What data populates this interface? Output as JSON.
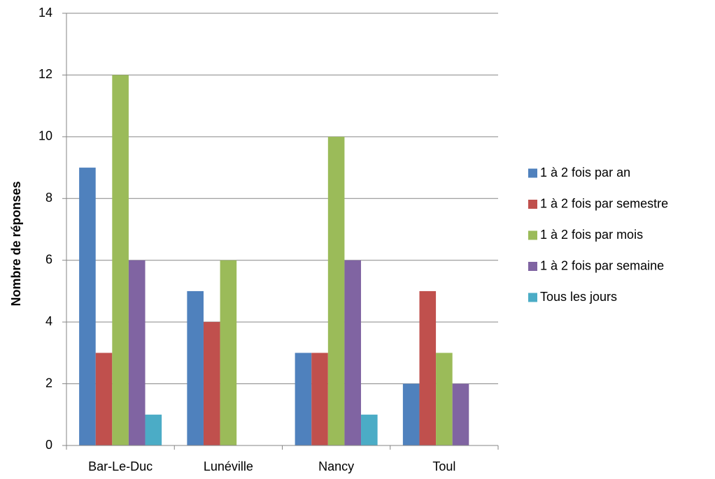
{
  "chart_data": {
    "type": "bar",
    "title": "",
    "xlabel": "",
    "ylabel": "Nombre de réponses",
    "ylim": [
      0,
      14
    ],
    "yticks": [
      0,
      2,
      4,
      6,
      8,
      10,
      12,
      14
    ],
    "grid": true,
    "legend_position": "right",
    "categories": [
      "Bar-Le-Duc",
      "Lunéville",
      "Nancy",
      "Toul"
    ],
    "series": [
      {
        "name": "1 à 2 fois par an",
        "color": "#4F81BD",
        "values": [
          9,
          5,
          3,
          2
        ]
      },
      {
        "name": "1 à 2 fois par semestre",
        "color": "#C0504D",
        "values": [
          3,
          4,
          3,
          5
        ]
      },
      {
        "name": "1 à 2 fois par mois",
        "color": "#9BBB59",
        "values": [
          12,
          6,
          10,
          3
        ]
      },
      {
        "name": "1 à 2 fois par semaine",
        "color": "#8064A2",
        "values": [
          6,
          0,
          6,
          2
        ]
      },
      {
        "name": "Tous les jours",
        "color": "#4BACC6",
        "values": [
          1,
          0,
          1,
          0
        ]
      }
    ]
  }
}
